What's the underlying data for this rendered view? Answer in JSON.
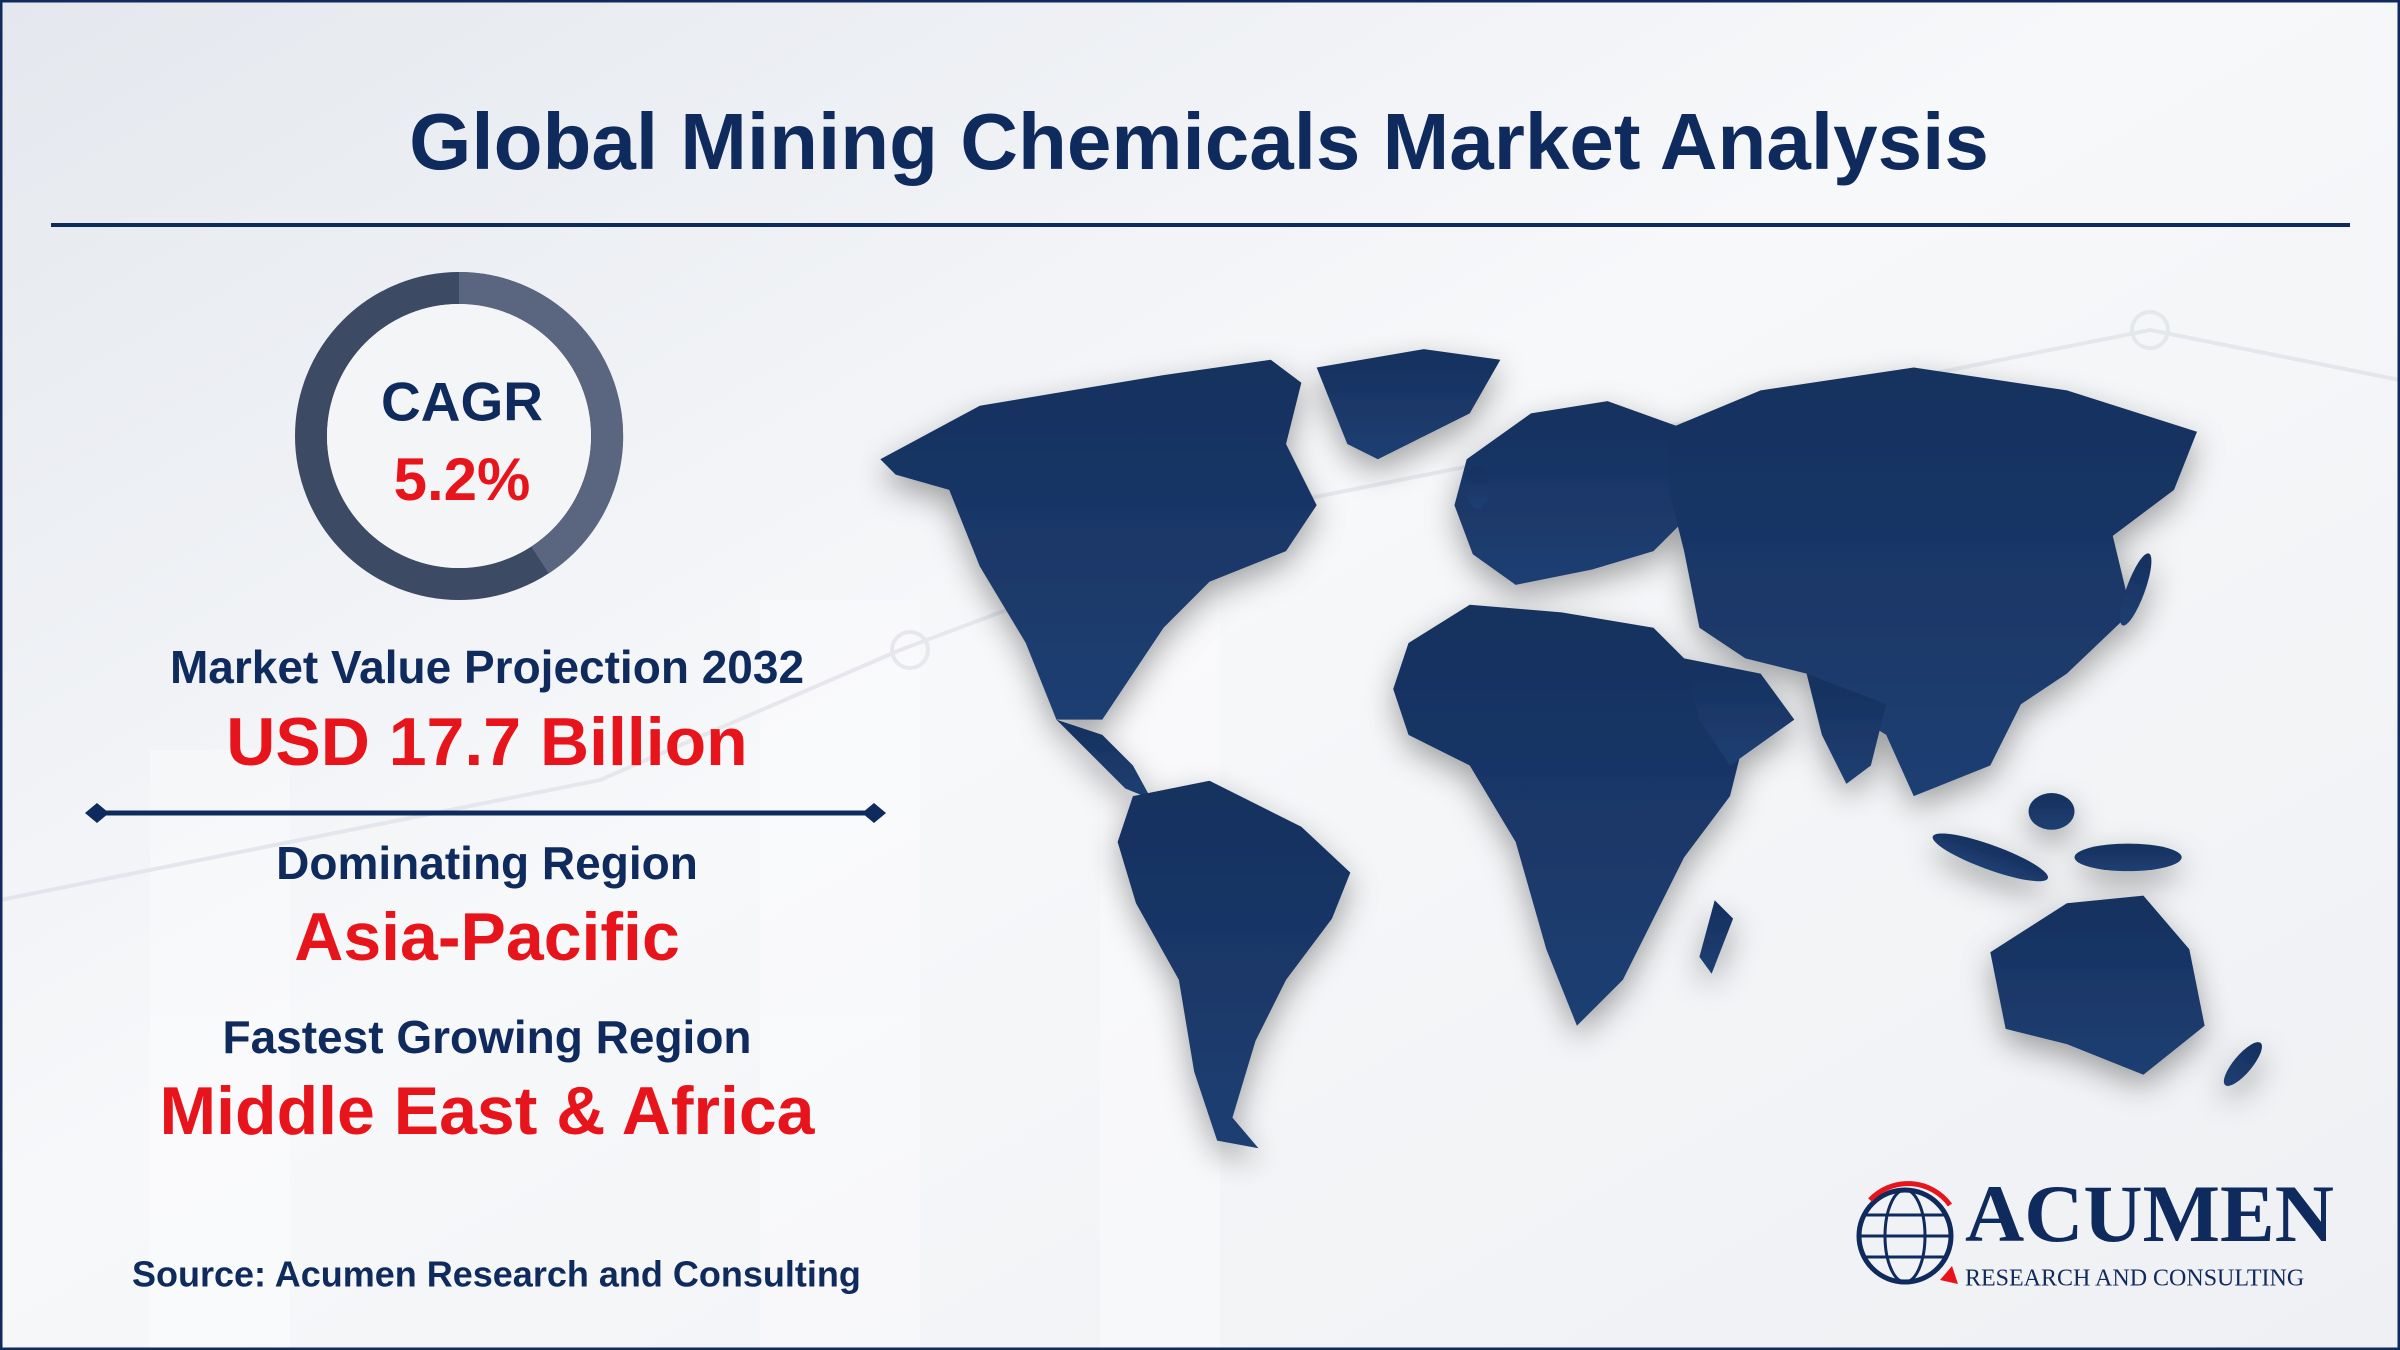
{
  "header": {
    "title": "Global Mining Chemicals Market Analysis"
  },
  "stats": {
    "cagr": {
      "label": "CAGR",
      "value": "5.2%"
    },
    "projection": {
      "label": "Market Value Projection 2032",
      "value": "USD 17.7 Billion"
    },
    "dominating": {
      "label": "Dominating Region",
      "value": "Asia-Pacific"
    },
    "fastest": {
      "label": "Fastest Growing Region",
      "value": "Middle East & Africa"
    }
  },
  "footer": {
    "source": "Source: Acumen Research and Consulting"
  },
  "logo": {
    "name": "ACUMEN",
    "tagline": "RESEARCH AND CONSULTING"
  }
}
